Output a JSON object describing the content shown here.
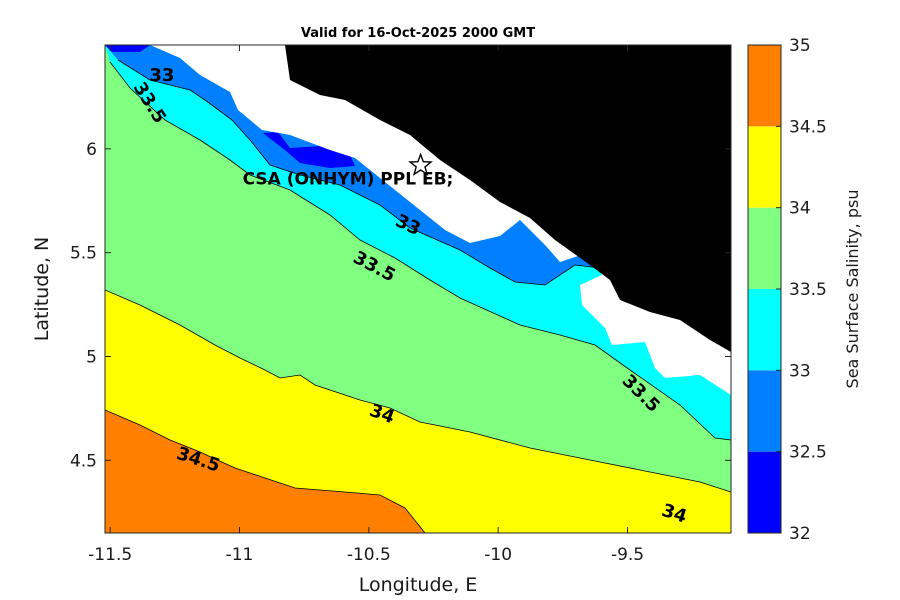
{
  "chart_data": {
    "type": "contour-map",
    "title": "Valid for 16-Oct-2025 2000 GMT",
    "xlabel": "Longitude, E",
    "ylabel": "Latitude, N",
    "xlim": [
      -11.52,
      -9.1
    ],
    "ylim": [
      4.15,
      6.5
    ],
    "xticks": [
      {
        "value": -11.5,
        "label": "-11.5"
      },
      {
        "value": -11,
        "label": "-11"
      },
      {
        "value": -10.5,
        "label": "-10.5"
      },
      {
        "value": -10,
        "label": "-10"
      },
      {
        "value": -9.5,
        "label": "-9.5"
      }
    ],
    "yticks": [
      {
        "value": 4.5,
        "label": "4.5"
      },
      {
        "value": 5,
        "label": "5"
      },
      {
        "value": 5.5,
        "label": "5.5"
      },
      {
        "value": 6,
        "label": "6"
      }
    ],
    "colorbar": {
      "label": "Sea Surface Salinity, psu",
      "range": [
        32,
        35
      ],
      "ticks": [
        {
          "value": 32,
          "label": "32"
        },
        {
          "value": 32.5,
          "label": "32.5"
        },
        {
          "value": 33,
          "label": "33"
        },
        {
          "value": 33.5,
          "label": "33.5"
        },
        {
          "value": 34,
          "label": "34"
        },
        {
          "value": 34.5,
          "label": "34.5"
        },
        {
          "value": 35,
          "label": "35"
        }
      ],
      "bands": [
        {
          "from": 32,
          "to": 32.5,
          "color": "#0000ff"
        },
        {
          "from": 32.5,
          "to": 33,
          "color": "#0080ff"
        },
        {
          "from": 33,
          "to": 33.5,
          "color": "#00ffff"
        },
        {
          "from": 33.5,
          "to": 34,
          "color": "#80ff80"
        },
        {
          "from": 34,
          "to": 34.5,
          "color": "#ffff00"
        },
        {
          "from": 34.5,
          "to": 35,
          "color": "#ff8000"
        }
      ]
    },
    "contour_labels": [
      {
        "text": "33",
        "lon": -11.3,
        "lat": 6.35,
        "angle": 0
      },
      {
        "text": "33.5",
        "lon": -11.35,
        "lat": 6.22,
        "angle": 58
      },
      {
        "text": "33",
        "lon": -10.35,
        "lat": 5.63,
        "angle": 25
      },
      {
        "text": "33.5",
        "lon": -10.48,
        "lat": 5.43,
        "angle": 28
      },
      {
        "text": "33.5",
        "lon": -9.45,
        "lat": 4.82,
        "angle": 45
      },
      {
        "text": "34",
        "lon": -10.45,
        "lat": 4.72,
        "angle": 20
      },
      {
        "text": "34.5",
        "lon": -11.16,
        "lat": 4.5,
        "angle": 18
      },
      {
        "text": "34",
        "lon": -9.32,
        "lat": 4.24,
        "angle": 18
      }
    ],
    "station": {
      "name": "CSA (ONHYM) PPL EB;",
      "lon": -10.3,
      "lat": 5.92,
      "marker": "star"
    },
    "land_color": "#000000",
    "no_data_color": "#ffffff"
  }
}
